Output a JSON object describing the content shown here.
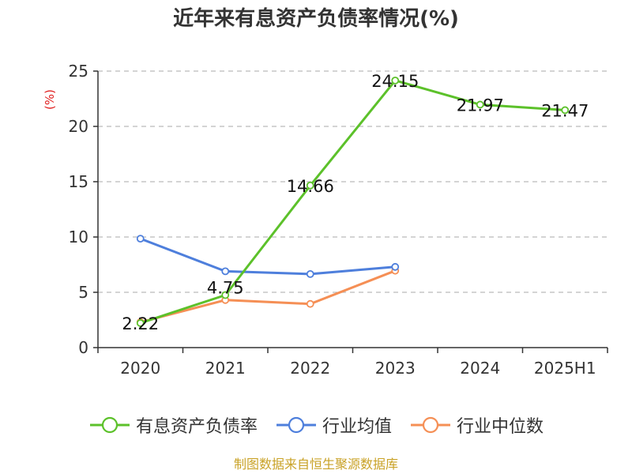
{
  "chart_data": {
    "type": "line",
    "title": "近年来有息资产负债率情况(%)",
    "ylabel": "(%)",
    "xlabel": "",
    "categories": [
      "2020",
      "2021",
      "2022",
      "2023",
      "2024",
      "2025H1"
    ],
    "ylim": [
      0,
      25
    ],
    "yticks": [
      0,
      5,
      10,
      15,
      20,
      25
    ],
    "grid": true,
    "legend_position": "bottom",
    "series": [
      {
        "name": "有息资产负债率",
        "color": "#5cc12a",
        "values": [
          2.22,
          4.75,
          14.66,
          24.15,
          21.97,
          21.47
        ],
        "labels": [
          "2.22",
          "4.75",
          "14.66",
          "24.15",
          "21.97",
          "21.47"
        ]
      },
      {
        "name": "行业均值",
        "color": "#4e7fdc",
        "values": [
          9.85,
          6.9,
          6.65,
          7.3,
          null,
          null
        ]
      },
      {
        "name": "行业中位数",
        "color": "#f58f55",
        "values": [
          2.3,
          4.3,
          3.95,
          6.95,
          null,
          null
        ]
      }
    ],
    "source": "制图数据来自恒生聚源数据库"
  },
  "colors": {
    "axis": "#333333",
    "grid": "#bbbbbb",
    "unit": "#e02020",
    "source": "#c9a227"
  }
}
